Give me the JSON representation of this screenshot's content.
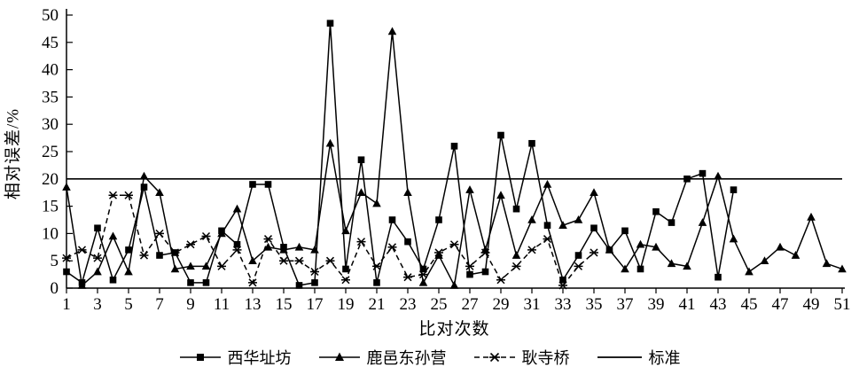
{
  "figure": {
    "y_axis_title": "相对误差/%",
    "x_axis_title": "比对次数"
  },
  "legend": [
    {
      "label": "西华址坊",
      "marker": "square",
      "line": "solid"
    },
    {
      "label": "鹿邑东孙营",
      "marker": "triangle",
      "line": "solid"
    },
    {
      "label": "耿寺桥",
      "marker": "xmark",
      "line": "dashed"
    },
    {
      "label": "标准",
      "marker": "none",
      "line": "solid"
    }
  ],
  "chart_data": {
    "type": "line",
    "title": "",
    "xlabel": "比对次数",
    "ylabel": "相对误差/%",
    "xlim": [
      1,
      51
    ],
    "ylim": [
      0,
      50
    ],
    "x_start": 1,
    "x_step": 1,
    "x_ticks": [
      1,
      3,
      5,
      7,
      9,
      11,
      13,
      15,
      17,
      19,
      21,
      23,
      25,
      27,
      29,
      31,
      33,
      35,
      37,
      39,
      41,
      43,
      45,
      47,
      49,
      51
    ],
    "y_ticks": [
      0,
      5,
      10,
      15,
      20,
      25,
      30,
      35,
      40,
      45,
      50
    ],
    "grid": false,
    "legend_position": "bottom",
    "colors": {
      "stroke": "#000000",
      "background": "#ffffff"
    },
    "series": [
      {
        "name": "西华址坊",
        "marker": "square",
        "line": "solid",
        "values": [
          3,
          1,
          11,
          1.5,
          7,
          18.5,
          6,
          6.5,
          1,
          1,
          10.5,
          8,
          19,
          19,
          7.5,
          0.5,
          1,
          48.5,
          3.5,
          23.5,
          1,
          12.5,
          8.5,
          3.5,
          12.5,
          26,
          2.5,
          3,
          28,
          14.5,
          26.5,
          11.5,
          1.5,
          6,
          11,
          7,
          10.5,
          3.5,
          14,
          12,
          20,
          21,
          2,
          18
        ]
      },
      {
        "name": "鹿邑东孙营",
        "marker": "triangle",
        "line": "solid",
        "values": [
          18.5,
          0.5,
          3,
          9.5,
          3,
          20.5,
          17.5,
          3.5,
          4,
          4,
          10,
          14.5,
          5,
          7.5,
          7,
          7.5,
          7,
          26.5,
          10.5,
          17.5,
          15.5,
          47,
          17.5,
          1,
          6,
          0.5,
          18,
          7,
          17,
          6,
          12.5,
          19,
          11.5,
          12.5,
          17.5,
          7,
          3.5,
          8,
          7.5,
          4.5,
          4,
          12,
          20.5,
          9,
          3,
          5,
          7.5,
          6,
          13,
          4.5,
          3.5
        ]
      },
      {
        "name": "耿寺桥",
        "marker": "xmark",
        "line": "dashed",
        "values": [
          5.5,
          7,
          5.5,
          17,
          17,
          6,
          10,
          6.5,
          8,
          9.5,
          4,
          7,
          1,
          9,
          5,
          5,
          3,
          5,
          1.5,
          8.5,
          4,
          7.5,
          2,
          2.5,
          6.5,
          8,
          4,
          6.5,
          1.5,
          4,
          7,
          9,
          0.5,
          4,
          6.5
        ]
      },
      {
        "name": "标准",
        "marker": "none",
        "line": "solid",
        "constant": 20
      }
    ]
  }
}
